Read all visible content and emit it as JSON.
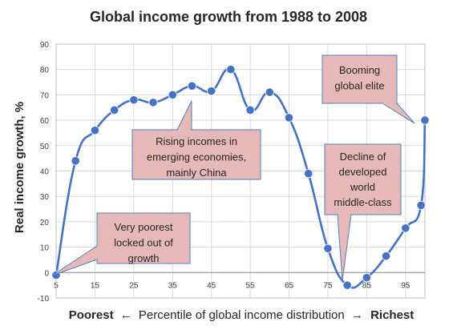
{
  "chart_data": {
    "type": "line",
    "title": "Global income growth from 1988 to 2008",
    "ylabel": "Real income growth, %",
    "xlabel": {
      "left": "Poorest",
      "left_arrow": "←",
      "middle": "Percentile of global income distribution",
      "right_arrow": "→",
      "right": "Richest"
    },
    "ylim": [
      -10,
      90
    ],
    "xlim": [
      5,
      100
    ],
    "yticks": [
      "-10",
      "0",
      "10",
      "20",
      "30",
      "40",
      "50",
      "60",
      "70",
      "80",
      "90"
    ],
    "xticks": [
      "5",
      "15",
      "25",
      "35",
      "45",
      "55",
      "65",
      "75",
      "85",
      "95"
    ],
    "grid": true,
    "colors": {
      "line": "#4472c4",
      "marker": "#4472c4",
      "callout_fill": "#e6b9b8",
      "callout_border": "#4f81bd",
      "grid": "#d9d9d9"
    },
    "series": [
      {
        "x": [
          5,
          10,
          15,
          20,
          25,
          30,
          35,
          40,
          45,
          50,
          55,
          60,
          65,
          70,
          75,
          80,
          85,
          90,
          95,
          99,
          100
        ],
        "values": [
          -1,
          44,
          56,
          64,
          68,
          67,
          70,
          73.5,
          71.5,
          80,
          64,
          71,
          61,
          39,
          9.5,
          -5,
          -2,
          6.5,
          17.5,
          26.5,
          60
        ]
      }
    ],
    "annotations": [
      {
        "lines": [
          "Very poorest",
          "locked out of",
          "growth"
        ]
      },
      {
        "lines": [
          "Rising incomes in",
          "emerging economies,",
          "mainly China"
        ]
      },
      {
        "lines": [
          "Decline of",
          "developed",
          "world",
          "middle-class"
        ]
      },
      {
        "lines": [
          "Booming",
          "global elite"
        ]
      }
    ]
  }
}
